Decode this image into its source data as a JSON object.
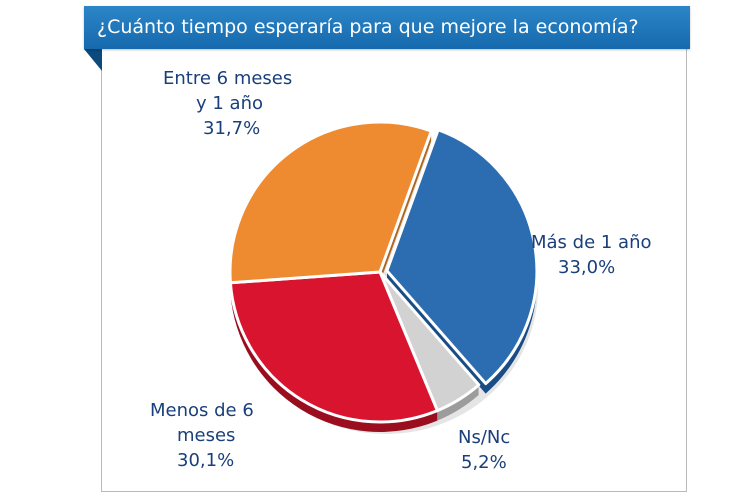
{
  "chart_data": {
    "type": "pie",
    "title": "¿Cuánto tiempo esperaría para que mejore la economía?",
    "slices": [
      {
        "label_lines": [
          "Más de 1 año"
        ],
        "value": 33.0,
        "value_label": "33,0%",
        "color": "#2b6db0",
        "side": "#1b4d86"
      },
      {
        "label_lines": [
          "Ns/Nc"
        ],
        "value": 5.2,
        "value_label": "5,2%",
        "color": "#d2d2d2",
        "side": "#9c9c9c"
      },
      {
        "label_lines": [
          "Menos de 6",
          "meses"
        ],
        "value": 30.1,
        "value_label": "30,1%",
        "color": "#d9142e",
        "side": "#9a0e1f"
      },
      {
        "label_lines": [
          "Entre 6 meses",
          "y 1 año"
        ],
        "value": 31.7,
        "value_label": "31,7%",
        "color": "#ee8a2f",
        "side": "#b0661f"
      }
    ],
    "legend": "none"
  }
}
